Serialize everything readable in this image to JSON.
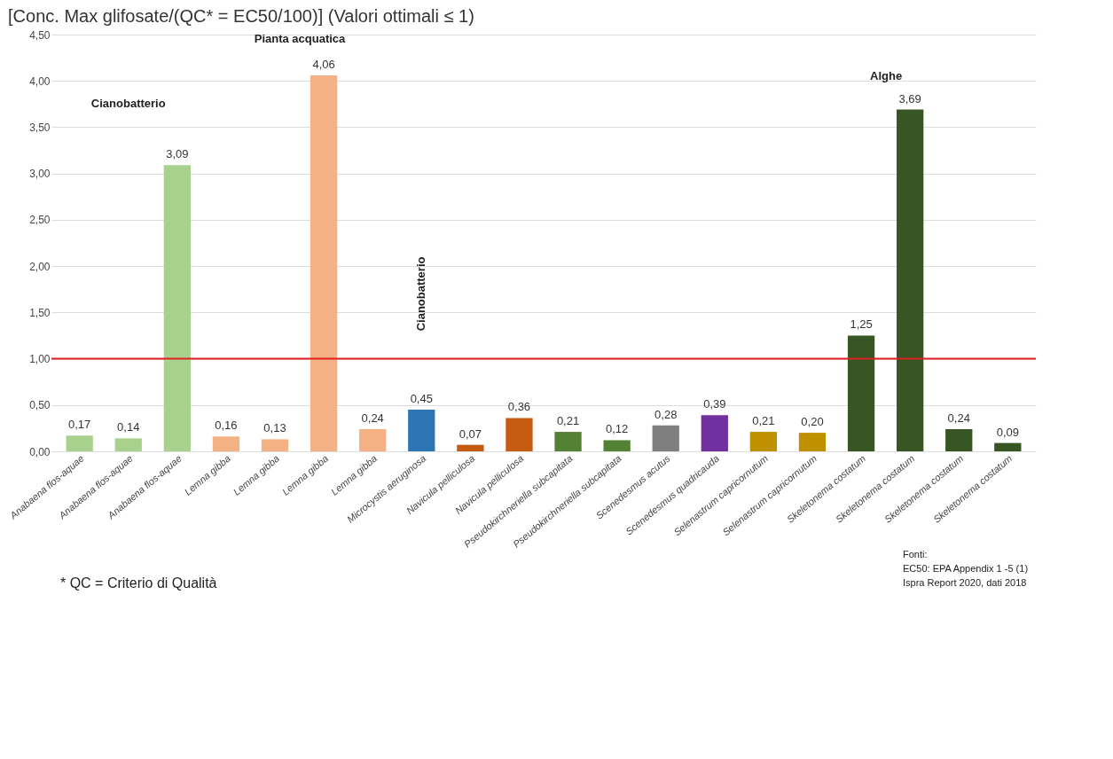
{
  "chart_data": {
    "type": "bar",
    "title": "[Conc. Max glifosate/(QC* = EC50/100)] (Valori ottimali ≤ 1)",
    "categories": [
      "Anabaena flos-aquae",
      "Anabaena flos-aquae",
      "Anabaena flos-aquae",
      "Lemna gibba",
      "Lemna gibba",
      "Lemna gibba",
      "Lemna gibba",
      "Microcystis aeruginosa",
      "Navicula pelliculosa",
      "Navicula pelliculosa",
      "Pseudokirchneriella subcapitata",
      "Pseudokirchneriella subcapitata",
      "Scenedesmus acutus",
      "Scenedesmus quadricauda",
      "Selenastrum capricornutum",
      "Selenastrum capricornutum",
      "Skeletonema costatum",
      "Skeletonema costatum",
      "Skeletonema costatum",
      "Skeletonema costatum"
    ],
    "values": [
      0.17,
      0.14,
      3.09,
      0.16,
      0.13,
      4.06,
      0.24,
      0.45,
      0.07,
      0.36,
      0.21,
      0.12,
      0.28,
      0.39,
      0.21,
      0.2,
      1.25,
      3.69,
      0.24,
      0.09
    ],
    "value_labels": [
      "0,17",
      "0,14",
      "3,09",
      "0,16",
      "0,13",
      "4,06",
      "0,24",
      "0,45",
      "0,07",
      "0,36",
      "0,21",
      "0,12",
      "0,28",
      "0,39",
      "0,21",
      "0,20",
      "1,25",
      "3,69",
      "0,24",
      "0,09"
    ],
    "colors": [
      "#a9d18e",
      "#a9d18e",
      "#a9d18e",
      "#f4b183",
      "#f4b183",
      "#f4b183",
      "#f4b183",
      "#2e75b6",
      "#c55a11",
      "#c55a11",
      "#548235",
      "#548235",
      "#7f7f7f",
      "#7030a0",
      "#bf9000",
      "#bf9000",
      "#375623",
      "#375623",
      "#375623",
      "#375623"
    ],
    "ylim": [
      0,
      4.5
    ],
    "yticks": [
      {
        "value": 0,
        "label": "0,00"
      },
      {
        "value": 0.5,
        "label": "0,50"
      },
      {
        "value": 1,
        "label": "1,00"
      },
      {
        "value": 1.5,
        "label": "1,50"
      },
      {
        "value": 2,
        "label": "2,00"
      },
      {
        "value": 2.5,
        "label": "2,50"
      },
      {
        "value": 3,
        "label": "3,00"
      },
      {
        "value": 3.5,
        "label": "3,50"
      },
      {
        "value": 4,
        "label": "4,00"
      },
      {
        "value": 4.5,
        "label": "4,50"
      }
    ],
    "grid": "y",
    "ref_lines": [
      {
        "axis": "y",
        "value": 1,
        "color": "#e02020"
      }
    ],
    "annotations": [
      "Cianobatterio",
      "Pianta acquatica",
      "Alghe",
      "Cianobatterio",
      "* QC = Criterio di Qualità",
      "Fonti:",
      "EC50: EPA Appendix 1 -5 (1)",
      "Ispra Report 2020, dati 2018"
    ]
  }
}
